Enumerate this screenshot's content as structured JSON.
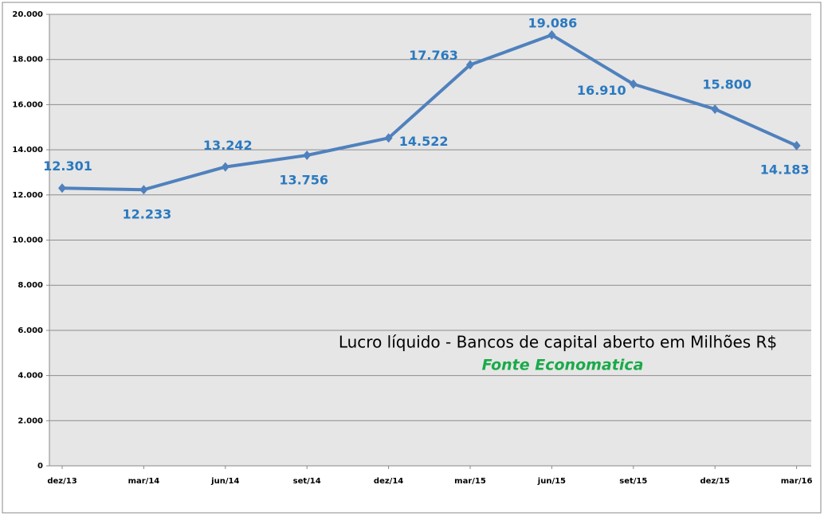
{
  "chart_data": {
    "type": "line",
    "title": "Lucro líquido - Bancos de capital aberto em Milhões R$",
    "subtitle": "Fonte Economatica",
    "categories": [
      "dez/13",
      "mar/14",
      "jun/14",
      "set/14",
      "dez/14",
      "mar/15",
      "jun/15",
      "set/15",
      "dez/15",
      "mar/16"
    ],
    "series": [
      {
        "name": "Lucro líquido",
        "color": "#4f81bd",
        "values": [
          12301,
          12233,
          13242,
          13756,
          14522,
          17763,
          19086,
          16910,
          15800,
          14183
        ],
        "value_labels": [
          "12.301",
          "12.233",
          "13.242",
          "13.756",
          "14.522",
          "17.763",
          "19.086",
          "16.910",
          "15.800",
          "14.183"
        ]
      }
    ],
    "ylim": [
      0,
      20000
    ],
    "yticks": [
      0,
      {
        "value": 2000,
        "label": "2.000"
      },
      {
        "value": 4000,
        "label": "4.000"
      },
      {
        "value": 6000,
        "label": "6.000"
      },
      {
        "value": 8000,
        "label": "8.000"
      },
      {
        "value": 10000,
        "label": "10.000"
      },
      {
        "value": 12000,
        "label": "12.000"
      },
      {
        "value": 14000,
        "label": "14.000"
      },
      {
        "value": 16000,
        "label": "16.000"
      },
      {
        "value": 18000,
        "label": "18.000"
      },
      {
        "value": 20000,
        "label": "20.000"
      }
    ],
    "grid": true
  }
}
